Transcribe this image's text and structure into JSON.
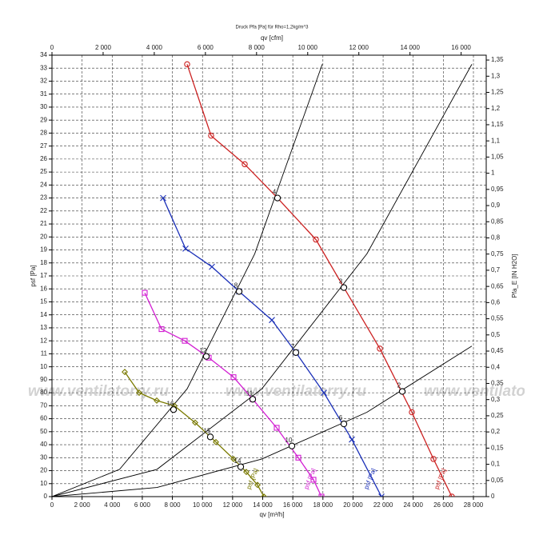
{
  "chart_data": {
    "type": "line",
    "title": "Druck Pfa [Pa] für Rho=1,2kg/m^3",
    "x_label": "qv [m³/h]",
    "x2_label": "qv [cfm]",
    "y_label": "psf [Pa]",
    "y2_label": "Pfa_E [IN H2O]",
    "watermark": "www.ventilatorry.ru",
    "grid": true,
    "xlim": [
      0,
      28850
    ],
    "xticks": [
      0,
      {
        "value": 2000,
        "label": "2 000"
      },
      {
        "value": 4000,
        "label": "4 000"
      },
      {
        "value": 6000,
        "label": "6 000"
      },
      {
        "value": 8000,
        "label": "8 000"
      },
      {
        "value": 10000,
        "label": "10 000"
      },
      {
        "value": 12000,
        "label": "12 000"
      },
      {
        "value": 14000,
        "label": "14 000"
      },
      {
        "value": 16000,
        "label": "16 000"
      },
      {
        "value": 18000,
        "label": "18 000"
      },
      {
        "value": 20000,
        "label": "20 000"
      },
      {
        "value": 22000,
        "label": "22 000"
      },
      {
        "value": 24000,
        "label": "24 000"
      },
      {
        "value": 26000,
        "label": "26 000"
      },
      {
        "value": 28000,
        "label": "28 000"
      }
    ],
    "x2lim": [
      0,
      16981
    ],
    "x2ticks": [
      0,
      {
        "value": 2000,
        "label": "2 000"
      },
      {
        "value": 4000,
        "label": "4 000"
      },
      {
        "value": 6000,
        "label": "6 000"
      },
      {
        "value": 8000,
        "label": "8 000"
      },
      {
        "value": 10000,
        "label": "10 000"
      },
      {
        "value": 12000,
        "label": "12 000"
      },
      {
        "value": 14000,
        "label": "14 000"
      },
      {
        "value": 16000,
        "label": "16 000"
      }
    ],
    "ylim": [
      0,
      340
    ],
    "yticks": [
      0,
      10,
      20,
      30,
      40,
      50,
      60,
      70,
      80,
      90,
      {
        "value": 100,
        "label": "10"
      },
      {
        "value": 110,
        "label": "11"
      },
      {
        "value": 120,
        "label": "12"
      },
      {
        "value": 130,
        "label": "13"
      },
      {
        "value": 140,
        "label": "14"
      },
      {
        "value": 150,
        "label": "15"
      },
      {
        "value": 160,
        "label": "16"
      },
      {
        "value": 170,
        "label": "17"
      },
      {
        "value": 180,
        "label": "18"
      },
      {
        "value": 190,
        "label": "19"
      },
      {
        "value": 200,
        "label": "20"
      },
      {
        "value": 210,
        "label": "21"
      },
      {
        "value": 220,
        "label": "22"
      },
      {
        "value": 230,
        "label": "23"
      },
      {
        "value": 240,
        "label": "24"
      },
      {
        "value": 250,
        "label": "25"
      },
      {
        "value": 260,
        "label": "26"
      },
      {
        "value": 270,
        "label": "27"
      },
      {
        "value": 280,
        "label": "28"
      },
      {
        "value": 290,
        "label": "29"
      },
      {
        "value": 300,
        "label": "30"
      },
      {
        "value": 310,
        "label": "31"
      },
      {
        "value": 320,
        "label": "32"
      },
      {
        "value": 330,
        "label": "33"
      },
      {
        "value": 340,
        "label": "34"
      }
    ],
    "y2lim": [
      0,
      1.365
    ],
    "y2ticks": [
      0,
      {
        "value": 0.05,
        "label": "0,05"
      },
      {
        "value": 0.1,
        "label": "0,1"
      },
      {
        "value": 0.15,
        "label": "0,15"
      },
      {
        "value": 0.2,
        "label": "0,2"
      },
      {
        "value": 0.25,
        "label": "0,25"
      },
      {
        "value": 0.3,
        "label": "0,3"
      },
      {
        "value": 0.35,
        "label": "0,35"
      },
      {
        "value": 0.4,
        "label": "0,4"
      },
      {
        "value": 0.45,
        "label": "0,45"
      },
      {
        "value": 0.5,
        "label": "0,5"
      },
      {
        "value": 0.55,
        "label": "0,55"
      },
      {
        "value": 0.6,
        "label": "0,6"
      },
      {
        "value": 0.65,
        "label": "0,65"
      },
      {
        "value": 0.7,
        "label": "0,7"
      },
      {
        "value": 0.75,
        "label": "0,75"
      },
      {
        "value": 0.8,
        "label": "0,8"
      },
      {
        "value": 0.85,
        "label": "0,85"
      },
      {
        "value": 0.9,
        "label": "0,9"
      },
      {
        "value": 0.95,
        "label": "0,95"
      },
      1,
      {
        "value": 1.05,
        "label": "1,05"
      },
      {
        "value": 1.1,
        "label": "1,1"
      },
      {
        "value": 1.15,
        "label": "1,15"
      },
      {
        "value": 1.2,
        "label": "1,2"
      },
      {
        "value": 1.25,
        "label": "1,25"
      },
      {
        "value": 1.3,
        "label": "1,3"
      },
      {
        "value": 1.35,
        "label": "1,35"
      }
    ],
    "series": [
      {
        "name": "psf [Pa]",
        "color": "#cc2222",
        "marker": "circle",
        "x": [
          8979,
          10573,
          12805,
          14983,
          17533,
          19393,
          21784,
          23910,
          25344,
          26566
        ],
        "values": [
          333,
          278,
          256,
          230,
          198,
          161,
          114,
          65,
          29,
          0
        ]
      },
      {
        "name": "psf [Pa]",
        "color": "#1a2fb8",
        "marker": "x",
        "x": [
          7385,
          8873,
          10627,
          12433,
          14611,
          16205,
          18065,
          19925,
          21891
        ],
        "values": [
          230,
          191,
          177,
          158,
          136,
          111,
          80,
          44,
          0
        ]
      },
      {
        "name": "psf [Pa]",
        "color": "#d21ed2",
        "marker": "square",
        "x": [
          6163,
          7279,
          8820,
          10414,
          12061,
          13336,
          14930,
          16365,
          17374,
          17905
        ],
        "values": [
          157,
          129,
          120,
          107,
          92,
          75,
          53,
          30,
          13,
          0
        ]
      },
      {
        "name": "psf [Pa]",
        "color": "#7a7a00",
        "marker": "diamond",
        "x": [
          4835,
          5791,
          6960,
          8129,
          9511,
          10892,
          12061,
          12911,
          13655,
          14080
        ],
        "values": [
          96,
          80,
          74,
          70,
          57,
          42,
          29,
          19,
          9,
          0
        ]
      }
    ],
    "system_curves": [
      {
        "x": [
          0,
          4490,
          8979,
          13469,
          17958
        ],
        "values": [
          0,
          21,
          83,
          187,
          333
        ]
      },
      {
        "x": [
          0,
          6974,
          13947,
          20921,
          27894
        ],
        "values": [
          0,
          21,
          83,
          187,
          333
        ]
      },
      {
        "x": [
          0,
          6974,
          13947,
          20921,
          27894
        ],
        "values": [
          0,
          7,
          29,
          65,
          116
        ]
      }
    ],
    "points": [
      {
        "x": 14983,
        "y": 230,
        "label": "4"
      },
      {
        "x": 19393,
        "y": 161,
        "label": "3"
      },
      {
        "x": 23272,
        "y": 81,
        "label": "2"
      },
      {
        "x": 12433,
        "y": 158,
        "label": "8"
      },
      {
        "x": 16205,
        "y": 111,
        "label": "7"
      },
      {
        "x": 19393,
        "y": 56,
        "label": "6"
      },
      {
        "x": 10254,
        "y": 108,
        "label": "12"
      },
      {
        "x": 13336,
        "y": 75,
        "label": "11"
      },
      {
        "x": 15940,
        "y": 39,
        "label": "10"
      },
      {
        "x": 8076,
        "y": 67,
        "label": "16"
      },
      {
        "x": 10520,
        "y": 46,
        "label": "15"
      },
      {
        "x": 12539,
        "y": 23,
        "label": "14"
      }
    ]
  }
}
